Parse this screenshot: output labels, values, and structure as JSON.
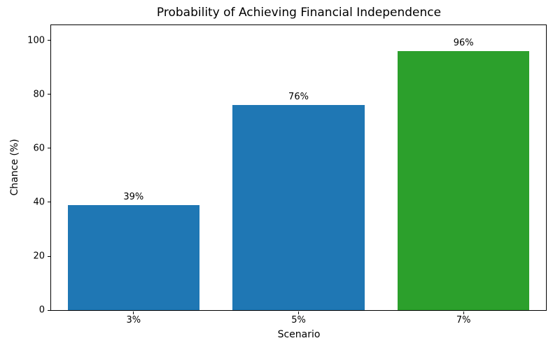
{
  "chart_data": {
    "type": "bar",
    "title": "Probability of Achieving Financial Independence",
    "xlabel": "Scenario",
    "ylabel": "Chance (%)",
    "categories": [
      "3%",
      "5%",
      "7%"
    ],
    "values": [
      39,
      76,
      96
    ],
    "bar_labels": [
      "39%",
      "76%",
      "96%"
    ],
    "bar_colors": [
      "#1f77b4",
      "#1f77b4",
      "#2ca02c"
    ],
    "yticks": [
      0,
      20,
      40,
      60,
      80,
      100
    ],
    "ylim": [
      0,
      105.7
    ],
    "bar_width_fraction": 0.8,
    "grid": false,
    "legend_position": "none"
  }
}
